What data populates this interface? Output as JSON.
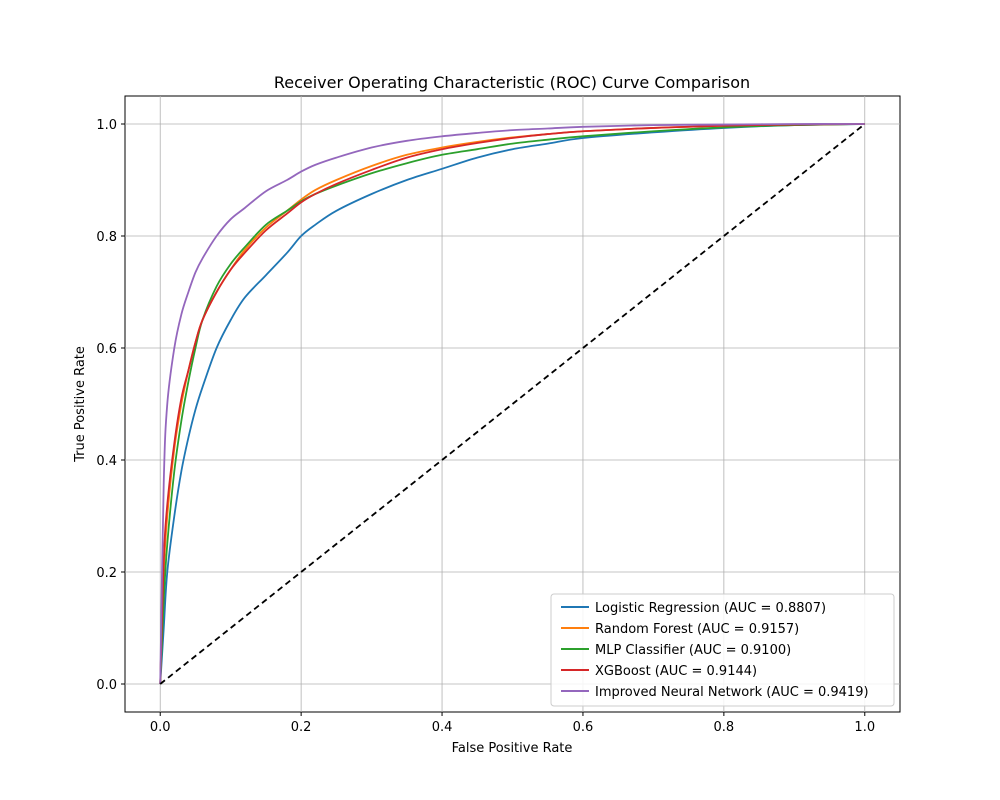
{
  "chart_data": {
    "type": "line",
    "title": "Receiver Operating Characteristic (ROC) Curve Comparison",
    "xlabel": "False Positive Rate",
    "ylabel": "True Positive Rate",
    "xlim": [
      -0.05,
      1.05
    ],
    "ylim": [
      -0.05,
      1.05
    ],
    "xticks": [
      "0.0",
      "0.2",
      "0.4",
      "0.6",
      "0.8",
      "1.0"
    ],
    "yticks": [
      "0.0",
      "0.2",
      "0.4",
      "0.6",
      "0.8",
      "1.0"
    ],
    "grid": true,
    "legend_position": "lower-right",
    "series": [
      {
        "name": "Logistic Regression (AUC = 0.8807)",
        "color": "#1f77b4",
        "x": [
          0,
          0.005,
          0.01,
          0.02,
          0.03,
          0.04,
          0.05,
          0.06,
          0.08,
          0.1,
          0.12,
          0.15,
          0.18,
          0.2,
          0.22,
          0.25,
          0.3,
          0.35,
          0.4,
          0.45,
          0.5,
          0.55,
          0.6,
          0.7,
          0.8,
          0.9,
          1.0
        ],
        "y": [
          0,
          0.1,
          0.2,
          0.3,
          0.38,
          0.44,
          0.49,
          0.53,
          0.6,
          0.65,
          0.69,
          0.73,
          0.77,
          0.8,
          0.82,
          0.845,
          0.875,
          0.9,
          0.92,
          0.94,
          0.955,
          0.965,
          0.975,
          0.985,
          0.993,
          0.998,
          1.0
        ]
      },
      {
        "name": "Random Forest (AUC = 0.9157)",
        "color": "#ff7f0e",
        "x": [
          0,
          0.005,
          0.01,
          0.02,
          0.03,
          0.04,
          0.05,
          0.06,
          0.08,
          0.1,
          0.12,
          0.15,
          0.18,
          0.2,
          0.22,
          0.25,
          0.3,
          0.35,
          0.4,
          0.45,
          0.5,
          0.55,
          0.6,
          0.7,
          0.8,
          0.9,
          1.0
        ],
        "y": [
          0,
          0.2,
          0.3,
          0.42,
          0.5,
          0.56,
          0.61,
          0.65,
          0.7,
          0.74,
          0.775,
          0.815,
          0.845,
          0.865,
          0.882,
          0.9,
          0.925,
          0.945,
          0.958,
          0.968,
          0.976,
          0.982,
          0.987,
          0.993,
          0.997,
          0.999,
          1.0
        ]
      },
      {
        "name": "MLP Classifier (AUC = 0.9100)",
        "color": "#2ca02c",
        "x": [
          0,
          0.005,
          0.01,
          0.02,
          0.03,
          0.04,
          0.05,
          0.06,
          0.08,
          0.1,
          0.12,
          0.15,
          0.18,
          0.2,
          0.22,
          0.25,
          0.3,
          0.35,
          0.4,
          0.45,
          0.5,
          0.55,
          0.6,
          0.7,
          0.8,
          0.9,
          1.0
        ],
        "y": [
          0,
          0.15,
          0.25,
          0.38,
          0.47,
          0.54,
          0.6,
          0.65,
          0.71,
          0.75,
          0.78,
          0.82,
          0.845,
          0.862,
          0.875,
          0.89,
          0.912,
          0.93,
          0.945,
          0.955,
          0.965,
          0.972,
          0.978,
          0.987,
          0.994,
          0.998,
          1.0
        ]
      },
      {
        "name": "XGBoost (AUC = 0.9144)",
        "color": "#d62728",
        "x": [
          0,
          0.005,
          0.01,
          0.02,
          0.03,
          0.04,
          0.05,
          0.06,
          0.08,
          0.1,
          0.12,
          0.15,
          0.18,
          0.2,
          0.22,
          0.25,
          0.3,
          0.35,
          0.4,
          0.45,
          0.5,
          0.55,
          0.6,
          0.7,
          0.8,
          0.9,
          1.0
        ],
        "y": [
          0,
          0.22,
          0.32,
          0.43,
          0.51,
          0.56,
          0.61,
          0.65,
          0.7,
          0.74,
          0.77,
          0.81,
          0.84,
          0.86,
          0.875,
          0.893,
          0.918,
          0.94,
          0.955,
          0.966,
          0.975,
          0.982,
          0.987,
          0.993,
          0.997,
          0.999,
          1.0
        ]
      },
      {
        "name": "Improved Neural Network (AUC = 0.9419)",
        "color": "#9467bd",
        "x": [
          0,
          0.005,
          0.01,
          0.02,
          0.03,
          0.04,
          0.05,
          0.06,
          0.08,
          0.1,
          0.12,
          0.15,
          0.18,
          0.2,
          0.22,
          0.25,
          0.3,
          0.35,
          0.4,
          0.45,
          0.5,
          0.55,
          0.6,
          0.7,
          0.8,
          0.9,
          1.0
        ],
        "y": [
          0,
          0.36,
          0.5,
          0.6,
          0.66,
          0.7,
          0.735,
          0.76,
          0.8,
          0.83,
          0.85,
          0.88,
          0.9,
          0.915,
          0.927,
          0.94,
          0.958,
          0.97,
          0.978,
          0.984,
          0.989,
          0.992,
          0.995,
          0.998,
          0.999,
          1.0,
          1.0
        ]
      }
    ],
    "reference_line": {
      "x": [
        0,
        1
      ],
      "y": [
        0,
        1
      ],
      "color": "#000000",
      "style": "dashed"
    }
  }
}
